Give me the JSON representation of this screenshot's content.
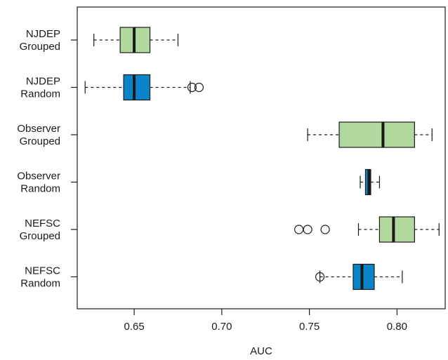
{
  "chart_data": {
    "type": "boxplot",
    "orientation": "horizontal",
    "xlabel": "AUC",
    "ylabel": "",
    "xlim": [
      0.6175,
      0.8275
    ],
    "xticks": [
      0.65,
      0.7,
      0.75,
      0.8
    ],
    "xtick_labels": [
      "0.65",
      "0.70",
      "0.75",
      "0.80"
    ],
    "grid": false,
    "colors": {
      "grouped": "#b3d89e",
      "random": "#0a84c8",
      "outline": "#1a1a1a"
    },
    "boxes": [
      {
        "label_lines": [
          "NJDEP",
          "Grouped"
        ],
        "group": "grouped",
        "whisker_low": 0.627,
        "q1": 0.642,
        "median": 0.65,
        "q3": 0.659,
        "whisker_high": 0.675,
        "outliers": []
      },
      {
        "label_lines": [
          "NJDEP",
          "Random"
        ],
        "group": "random",
        "whisker_low": 0.622,
        "q1": 0.644,
        "median": 0.65,
        "q3": 0.659,
        "whisker_high": 0.682,
        "outliers": [
          0.683,
          0.687
        ]
      },
      {
        "label_lines": [
          "Observer",
          "Grouped"
        ],
        "group": "grouped",
        "whisker_low": 0.749,
        "q1": 0.767,
        "median": 0.792,
        "q3": 0.81,
        "whisker_high": 0.82,
        "outliers": []
      },
      {
        "label_lines": [
          "Observer",
          "Random"
        ],
        "group": "random",
        "whisker_low": 0.779,
        "q1": 0.782,
        "median": 0.784,
        "q3": 0.785,
        "whisker_high": 0.79,
        "outliers": []
      },
      {
        "label_lines": [
          "NEFSC",
          "Grouped"
        ],
        "group": "grouped",
        "whisker_low": 0.778,
        "q1": 0.79,
        "median": 0.798,
        "q3": 0.81,
        "whisker_high": 0.824,
        "outliers": [
          0.744,
          0.749,
          0.759
        ]
      },
      {
        "label_lines": [
          "NEFSC",
          "Random"
        ],
        "group": "random",
        "whisker_low": 0.756,
        "q1": 0.775,
        "median": 0.78,
        "q3": 0.787,
        "whisker_high": 0.803,
        "outliers": [
          0.756
        ]
      }
    ]
  }
}
